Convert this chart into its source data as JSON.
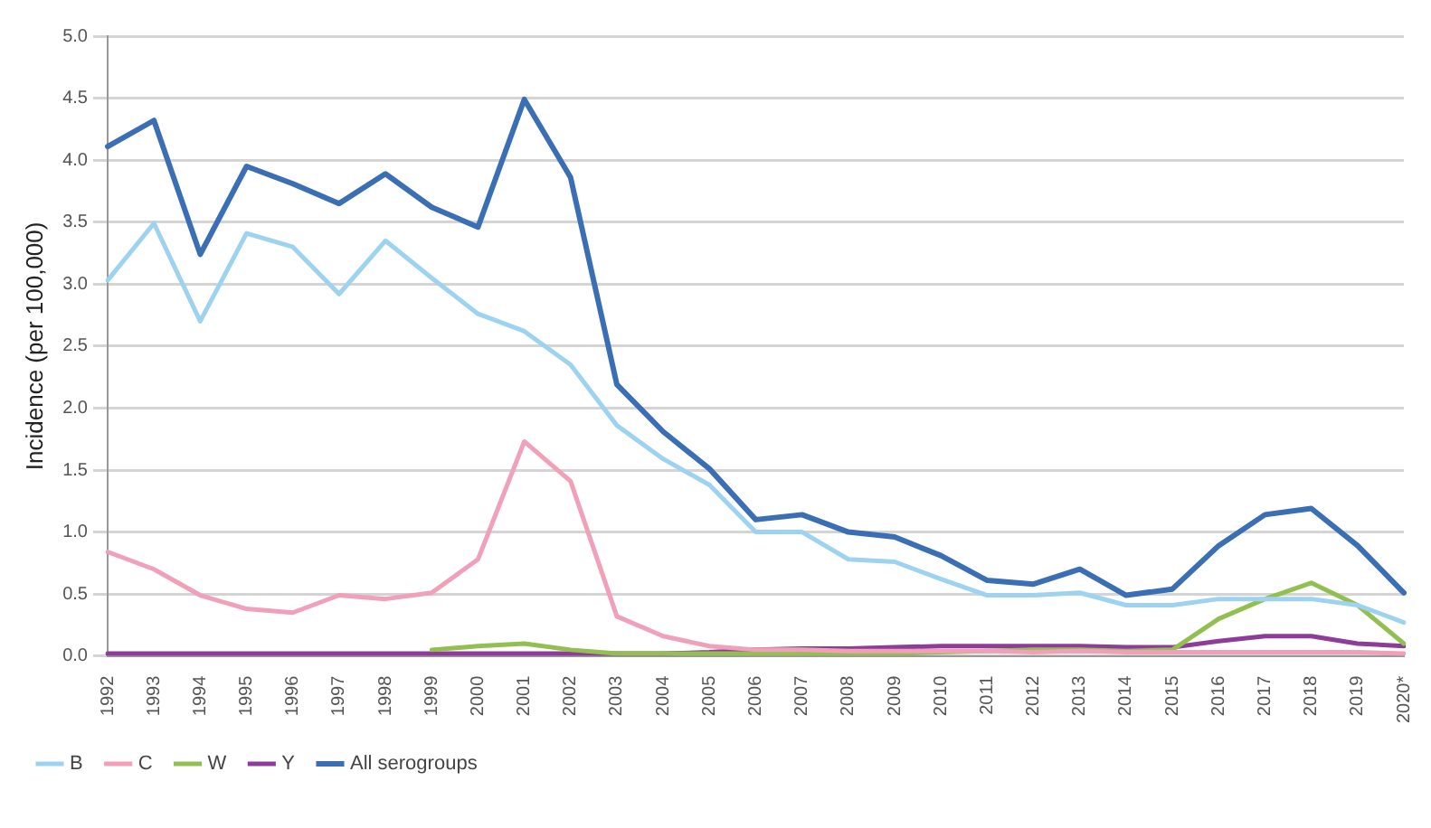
{
  "chart_data": {
    "type": "line",
    "ylabel": "Incidence (per 100,000)",
    "categories": [
      "1992",
      "1993",
      "1994",
      "1995",
      "1996",
      "1997",
      "1998",
      "1999",
      "2000",
      "2001",
      "2002",
      "2003",
      "2004",
      "2005",
      "2006",
      "2007",
      "2008",
      "2009",
      "2010",
      "2011",
      "2012",
      "2013",
      "2014",
      "2015",
      "2016",
      "2017",
      "2018",
      "2019",
      "2020*"
    ],
    "series": [
      {
        "name": "B",
        "color": "#9dd3f0",
        "values": [
          3.03,
          3.49,
          2.7,
          3.41,
          3.3,
          2.92,
          3.35,
          3.05,
          2.76,
          2.62,
          2.35,
          1.86,
          1.59,
          1.38,
          1.0,
          1.0,
          0.78,
          0.76,
          0.62,
          0.49,
          0.49,
          0.51,
          0.41,
          0.41,
          0.46,
          0.46,
          0.46,
          0.41,
          0.27
        ]
      },
      {
        "name": "C",
        "color": "#f0a0b8",
        "values": [
          0.84,
          0.7,
          0.49,
          0.38,
          0.35,
          0.49,
          0.46,
          0.51,
          0.78,
          1.73,
          1.41,
          0.32,
          0.16,
          0.08,
          0.05,
          0.05,
          0.04,
          0.04,
          0.04,
          0.04,
          0.03,
          0.04,
          0.03,
          0.03,
          0.03,
          0.03,
          0.03,
          0.03,
          0.02
        ]
      },
      {
        "name": "W",
        "color": "#92c050",
        "values": [
          null,
          null,
          null,
          null,
          null,
          null,
          null,
          0.05,
          0.08,
          0.1,
          0.05,
          0.02,
          0.02,
          0.02,
          0.02,
          0.02,
          0.02,
          0.02,
          0.03,
          0.04,
          0.05,
          0.05,
          0.04,
          0.05,
          0.3,
          0.46,
          0.59,
          0.41,
          0.1
        ]
      },
      {
        "name": "Y",
        "color": "#8e3c9a",
        "values": [
          0.02,
          0.02,
          0.02,
          0.02,
          0.02,
          0.02,
          0.02,
          0.02,
          0.02,
          0.02,
          0.02,
          0.02,
          0.02,
          0.03,
          0.05,
          0.06,
          0.06,
          0.07,
          0.08,
          0.08,
          0.08,
          0.08,
          0.07,
          0.07,
          0.12,
          0.16,
          0.16,
          0.1,
          0.08
        ]
      },
      {
        "name": "All serogroups",
        "color": "#3a6fb5",
        "values": [
          4.11,
          4.32,
          3.24,
          3.95,
          3.81,
          3.65,
          3.89,
          3.62,
          3.46,
          4.49,
          3.86,
          2.19,
          1.81,
          1.51,
          1.1,
          1.14,
          1.0,
          0.96,
          0.81,
          0.61,
          0.58,
          0.7,
          0.49,
          0.54,
          0.89,
          1.14,
          1.19,
          0.89,
          0.51
        ]
      }
    ],
    "ylim": [
      0,
      5
    ],
    "yticks": [
      {
        "value": 0,
        "label": "0.0"
      },
      {
        "value": 0.5,
        "label": "0.5"
      },
      {
        "value": 1,
        "label": "1.0"
      },
      {
        "value": 1.5,
        "label": "1.5"
      },
      {
        "value": 2,
        "label": "2.0"
      },
      {
        "value": 2.5,
        "label": "2.5"
      },
      {
        "value": 3,
        "label": "3.0"
      },
      {
        "value": 3.5,
        "label": "3.5"
      },
      {
        "value": 4,
        "label": "4.0"
      },
      {
        "value": 4.5,
        "label": "4.5"
      },
      {
        "value": 5,
        "label": "5.0"
      }
    ],
    "grid": "y",
    "legend": "bottom",
    "marker": "none",
    "line_style": "solid"
  }
}
